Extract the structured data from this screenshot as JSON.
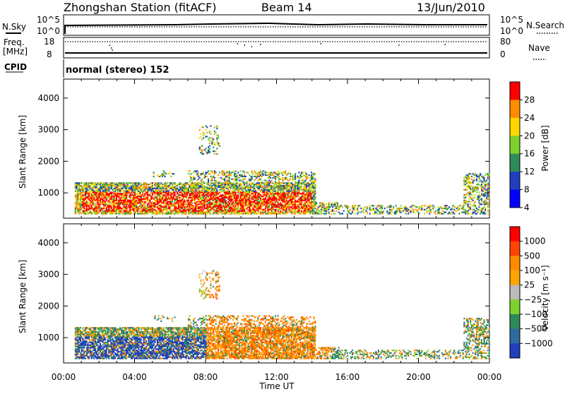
{
  "header": {
    "station": "Zhongshan Station (fitACF)",
    "beam": "Beam 14",
    "date": "13/Jun/2010"
  },
  "left_labels": {
    "nsky": "N.Sky",
    "freq": "Freq.",
    "freq_unit": "[MHz]",
    "cpid": "CPID"
  },
  "right_labels": {
    "nsearch": "N.Search",
    "nave": "Nave"
  },
  "mode_label": "normal (stereo) 152",
  "top_panel_ticks": {
    "nsky_left": [
      "10^5",
      "10^0"
    ],
    "nsearch_right": [
      "10^5",
      "10^0"
    ],
    "freq_left": [
      "18",
      "8"
    ],
    "nave_right": [
      "80",
      "0"
    ]
  },
  "colors": {
    "red": "#ff0000",
    "orange": "#ff8c00",
    "yellow": "#ffd700",
    "lightgreen": "#7fd12f",
    "green": "#2e8b57",
    "blue": "#1f3fbf",
    "gray": "#bbbbbb"
  },
  "chart_data": [
    {
      "type": "heatmap",
      "title": "",
      "xlabel": "Time UT",
      "ylabel": "Slant Range [km]",
      "x_ticks": [
        "00:00",
        "04:00",
        "08:00",
        "12:00",
        "16:00",
        "20:00",
        "00:00"
      ],
      "y_ticks": [
        1000,
        2000,
        3000,
        4000
      ],
      "xlim": [
        0,
        24
      ],
      "ylim": [
        200,
        4600
      ],
      "colorbar": {
        "label": "Power [dB]",
        "ticks": [
          "4",
          "8",
          "12",
          "16",
          "20",
          "24",
          "28"
        ],
        "colors": [
          "#0000ff",
          "#1f3fbf",
          "#2e8b57",
          "#7fd12f",
          "#ffd700",
          "#ff8c00",
          "#ff0000"
        ]
      }
    },
    {
      "type": "heatmap",
      "title": "",
      "xlabel": "Time UT",
      "ylabel": "Slant Range [km]",
      "x_ticks": [
        "00:00",
        "04:00",
        "08:00",
        "12:00",
        "16:00",
        "20:00",
        "00:00"
      ],
      "y_ticks": [
        1000,
        2000,
        3000,
        4000
      ],
      "xlim": [
        0,
        24
      ],
      "ylim": [
        200,
        4600
      ],
      "colorbar": {
        "label": "Velocity [m s⁻¹]",
        "ticks": [
          "1000",
          "500",
          "100",
          "25",
          "−25",
          "−100",
          "−500",
          "−1000"
        ],
        "colors": [
          "#1f3fbf",
          "#2e6b9e",
          "#2e8b57",
          "#7fd12f",
          "#bbbbbb",
          "#ffa500",
          "#ff8c00",
          "#ff4500",
          "#ff0000"
        ]
      }
    }
  ]
}
